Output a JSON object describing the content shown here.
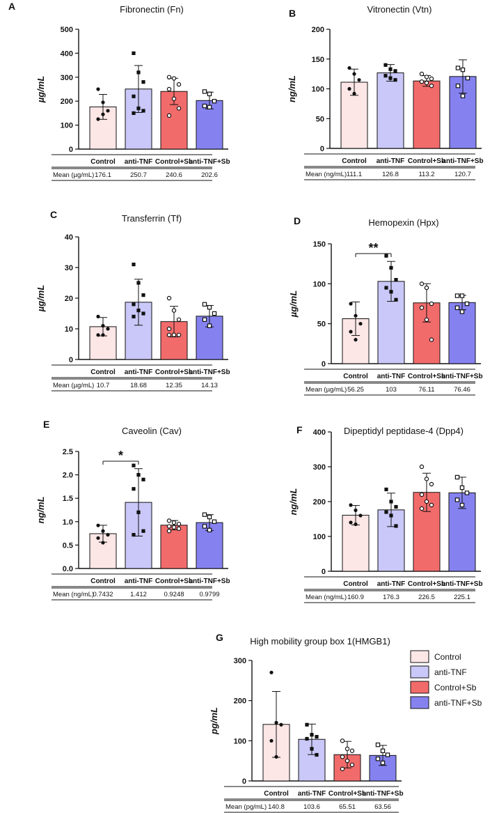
{
  "colors": {
    "Control": "#fde6e6",
    "anti-TNF": "#c9c8f8",
    "Control+Sb": "#f26b6b",
    "anti-TNF+Sb": "#8582f0"
  },
  "markers": [
    "circle",
    "square",
    "circle-open",
    "square-open"
  ],
  "legend": [
    "Control",
    "anti-TNF",
    "Control+Sb",
    "anti-TNF+Sb"
  ],
  "chart_data": [
    {
      "id": "A",
      "type": "bar",
      "title": "Fibronectin (Fn)",
      "ylabel": "µg/mL",
      "categories": [
        "Control",
        "anti-TNF",
        "Control+Sb",
        "anti-TNF+Sb"
      ],
      "values": [
        176.1,
        250.7,
        240.6,
        202.6
      ],
      "sd": [
        52,
        98,
        55,
        35
      ],
      "points": [
        [
          250,
          195,
          160,
          125,
          145
        ],
        [
          400,
          320,
          280,
          220,
          170,
          160,
          150
        ],
        [
          300,
          295,
          270,
          250,
          210,
          170,
          140
        ],
        [
          240,
          230,
          200,
          180,
          175
        ]
      ],
      "ylim": [
        0,
        500
      ],
      "yticks": [
        0,
        100,
        200,
        300,
        400,
        500
      ],
      "mean_label": "Mean (µg/mL)",
      "means": [
        "176.1",
        "250.7",
        "240.6",
        "202.6"
      ],
      "sig": null
    },
    {
      "id": "B",
      "type": "bar",
      "title": "Vitronectin (Vtn)",
      "ylabel": "ng/mL",
      "categories": [
        "Control",
        "anti-TNF",
        "Control+Sb",
        "anti-TNF+Sb"
      ],
      "values": [
        111.1,
        126.8,
        113.2,
        120.7
      ],
      "sd": [
        22,
        14,
        9,
        28
      ],
      "points": [
        [
          135,
          125,
          115,
          100,
          92
        ],
        [
          140,
          133,
          130,
          122,
          118,
          115
        ],
        [
          125,
          120,
          117,
          112,
          110,
          105
        ],
        [
          135,
          132,
          118,
          105,
          88
        ]
      ],
      "ylim": [
        0,
        200
      ],
      "yticks": [
        0,
        50,
        100,
        150,
        200
      ],
      "mean_label": "Mean (ng/mL)",
      "means": [
        "111.1",
        "126.8",
        "113.2",
        "120.7"
      ],
      "sig": null
    },
    {
      "id": "C",
      "type": "bar",
      "title": "Transferrin (Tf)",
      "ylabel": "µg/mL",
      "categories": [
        "Control",
        "anti-TNF",
        "Control+Sb",
        "anti-TNF+Sb"
      ],
      "values": [
        10.7,
        18.68,
        12.35,
        14.13
      ],
      "sd": [
        3,
        7.5,
        5,
        3.5
      ],
      "points": [
        [
          14,
          11,
          10,
          8,
          8
        ],
        [
          31,
          25,
          21,
          18,
          16,
          15,
          14
        ],
        [
          20,
          16,
          13,
          10,
          8,
          8,
          8
        ],
        [
          18,
          17,
          15,
          13,
          11
        ]
      ],
      "ylim": [
        0,
        40
      ],
      "yticks": [
        0,
        10,
        20,
        30,
        40
      ],
      "mean_label": "Mean (µg/mL)",
      "means": [
        "10.7",
        "18.68",
        "12.35",
        "14.13"
      ],
      "sig": null
    },
    {
      "id": "D",
      "type": "bar",
      "title": "Hemopexin (Hpx)",
      "ylabel": "µg/mL",
      "categories": [
        "Control",
        "anti-TNF",
        "Control+Sb",
        "anti-TNF+Sb"
      ],
      "values": [
        56.25,
        103,
        76.11,
        76.46
      ],
      "sd": [
        21,
        25,
        24,
        9
      ],
      "points": [
        [
          75,
          60,
          50,
          40,
          30
        ],
        [
          135,
          120,
          105,
          95,
          90,
          80
        ],
        [
          100,
          95,
          75,
          70,
          55,
          30
        ],
        [
          85,
          85,
          75,
          70,
          65
        ]
      ],
      "ylim": [
        0,
        150
      ],
      "yticks": [
        0,
        50,
        100,
        150
      ],
      "mean_label": "Mean (µg/mL)",
      "means": [
        "56.25",
        "103",
        "76.11",
        "76.46"
      ],
      "sig": {
        "from": 0,
        "to": 1,
        "label": "**"
      }
    },
    {
      "id": "E",
      "type": "bar",
      "title": "Caveolin (Cav)",
      "ylabel": "ng/mL",
      "categories": [
        "Control",
        "anti-TNF",
        "Control+Sb",
        "anti-TNF+Sb"
      ],
      "values": [
        0.7432,
        1.412,
        0.9248,
        0.9799
      ],
      "sd": [
        0.18,
        0.72,
        0.1,
        0.17
      ],
      "points": [
        [
          0.92,
          0.8,
          0.72,
          0.65,
          0.55
        ],
        [
          2.2,
          2.0,
          1.9,
          1.7,
          1.2,
          0.8,
          0.72
        ],
        [
          1.02,
          0.98,
          0.95,
          0.9,
          0.88,
          0.85,
          0.8
        ],
        [
          1.15,
          1.1,
          1.0,
          0.9,
          0.82
        ]
      ],
      "ylim": [
        0,
        2.5
      ],
      "yticks": [
        0,
        0.5,
        1.0,
        1.5,
        2.0,
        2.5
      ],
      "tick_decimals": 1,
      "mean_label": "Mean (ng/mL)",
      "means": [
        "0.7432",
        "1.412",
        "0.9248",
        "0.9799"
      ],
      "sig": {
        "from": 0,
        "to": 1,
        "label": "*"
      }
    },
    {
      "id": "F",
      "type": "bar",
      "title": "Dipeptidyl peptidase-4 (Dpp4)",
      "ylabel": "ng/mL",
      "categories": [
        "Control",
        "anti-TNF",
        "Control+Sb",
        "anti-TNF+Sb"
      ],
      "values": [
        160.9,
        176.3,
        226.5,
        225.1
      ],
      "sd": [
        28,
        48,
        55,
        45
      ],
      "points": [
        [
          190,
          175,
          160,
          140,
          135
        ],
        [
          235,
          200,
          185,
          170,
          160,
          130
        ],
        [
          300,
          265,
          250,
          220,
          200,
          190,
          180
        ],
        [
          270,
          240,
          225,
          205,
          190
        ]
      ],
      "ylim": [
        0,
        400
      ],
      "yticks": [
        0,
        100,
        200,
        300,
        400
      ],
      "mean_label": "Mean (ng/mL)",
      "means": [
        "160.9",
        "176.3",
        "226.5",
        "225.1"
      ],
      "sig": null
    },
    {
      "id": "G",
      "type": "bar",
      "title": "High mobility group box 1(HMGB1)",
      "ylabel": "pg/mL",
      "categories": [
        "Control",
        "anti-TNF",
        "Control+Sb",
        "anti-TNF+Sb"
      ],
      "values": [
        140.8,
        103.6,
        65.51,
        63.56
      ],
      "sd": [
        82,
        38,
        33,
        25
      ],
      "points": [
        [
          270,
          145,
          140,
          100,
          60
        ],
        [
          140,
          115,
          110,
          105,
          80,
          65
        ],
        [
          100,
          80,
          75,
          60,
          50,
          40,
          30
        ],
        [
          90,
          75,
          65,
          55,
          45
        ]
      ],
      "ylim": [
        0,
        300
      ],
      "yticks": [
        0,
        100,
        200,
        300
      ],
      "mean_label": "Mean (pg/mL)",
      "means": [
        "140.8",
        "103.6",
        "65.51",
        "63.56"
      ],
      "sig": null
    }
  ]
}
